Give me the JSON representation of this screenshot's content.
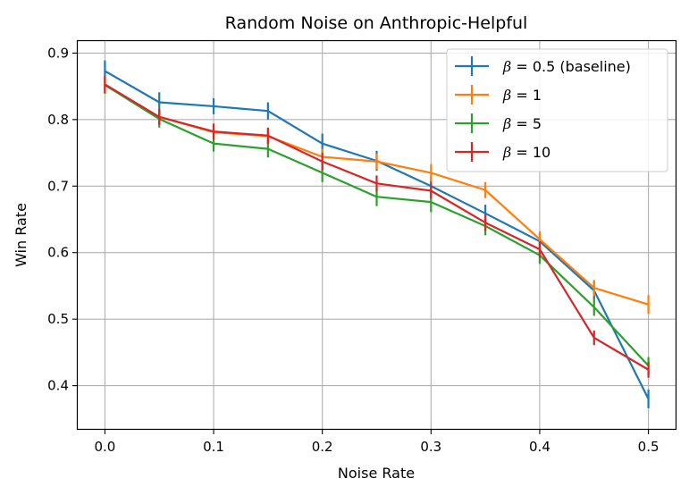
{
  "chart_data": {
    "type": "line",
    "title": "Random Noise on Anthropic-Helpful",
    "xlabel": "Noise Rate",
    "ylabel": "Win Rate",
    "xlim": [
      -0.025,
      0.525
    ],
    "ylim": [
      0.335,
      0.918
    ],
    "xticks": [
      0.0,
      0.1,
      0.2,
      0.3,
      0.4,
      0.5
    ],
    "xtick_labels": [
      "0.0",
      "0.1",
      "0.2",
      "0.3",
      "0.4",
      "0.5"
    ],
    "yticks": [
      0.4,
      0.5,
      0.6,
      0.7,
      0.8,
      0.9
    ],
    "ytick_labels": [
      "0.4",
      "0.5",
      "0.6",
      "0.7",
      "0.8",
      "0.9"
    ],
    "grid": true,
    "legend_position": "top-right",
    "x": [
      0.0,
      0.05,
      0.1,
      0.15,
      0.2,
      0.25,
      0.3,
      0.35,
      0.4,
      0.45,
      0.5
    ],
    "series": [
      {
        "legend_beta": "β",
        "legend_rest": " = 0.5 (baseline)",
        "color": "#1f77b4",
        "values": [
          0.873,
          0.826,
          0.82,
          0.813,
          0.764,
          0.738,
          0.7,
          0.659,
          0.617,
          0.543,
          0.38
        ],
        "errors": [
          0.016,
          0.015,
          0.012,
          0.013,
          0.015,
          0.015,
          0.013,
          0.013,
          0.012,
          0.013,
          0.014
        ]
      },
      {
        "legend_beta": "β",
        "legend_rest": " = 1",
        "color": "#ff7f0e",
        "values": [
          0.852,
          0.804,
          0.781,
          0.775,
          0.744,
          0.737,
          0.72,
          0.694,
          0.62,
          0.547,
          0.522
        ],
        "errors": [
          0.013,
          0.012,
          0.012,
          0.012,
          0.012,
          0.012,
          0.013,
          0.012,
          0.012,
          0.012,
          0.014
        ]
      },
      {
        "legend_beta": "β",
        "legend_rest": " = 5",
        "color": "#2ca02c",
        "values": [
          0.852,
          0.801,
          0.764,
          0.756,
          0.72,
          0.684,
          0.676,
          0.64,
          0.596,
          0.518,
          0.43
        ],
        "errors": [
          0.013,
          0.013,
          0.012,
          0.013,
          0.014,
          0.014,
          0.015,
          0.014,
          0.013,
          0.013,
          0.013
        ]
      },
      {
        "legend_beta": "β",
        "legend_rest": " = 10",
        "color": "#d62728",
        "values": [
          0.853,
          0.804,
          0.782,
          0.776,
          0.737,
          0.704,
          0.693,
          0.645,
          0.605,
          0.472,
          0.424
        ],
        "errors": [
          0.013,
          0.012,
          0.012,
          0.012,
          0.013,
          0.012,
          0.012,
          0.012,
          0.012,
          0.011,
          0.012
        ]
      }
    ]
  }
}
